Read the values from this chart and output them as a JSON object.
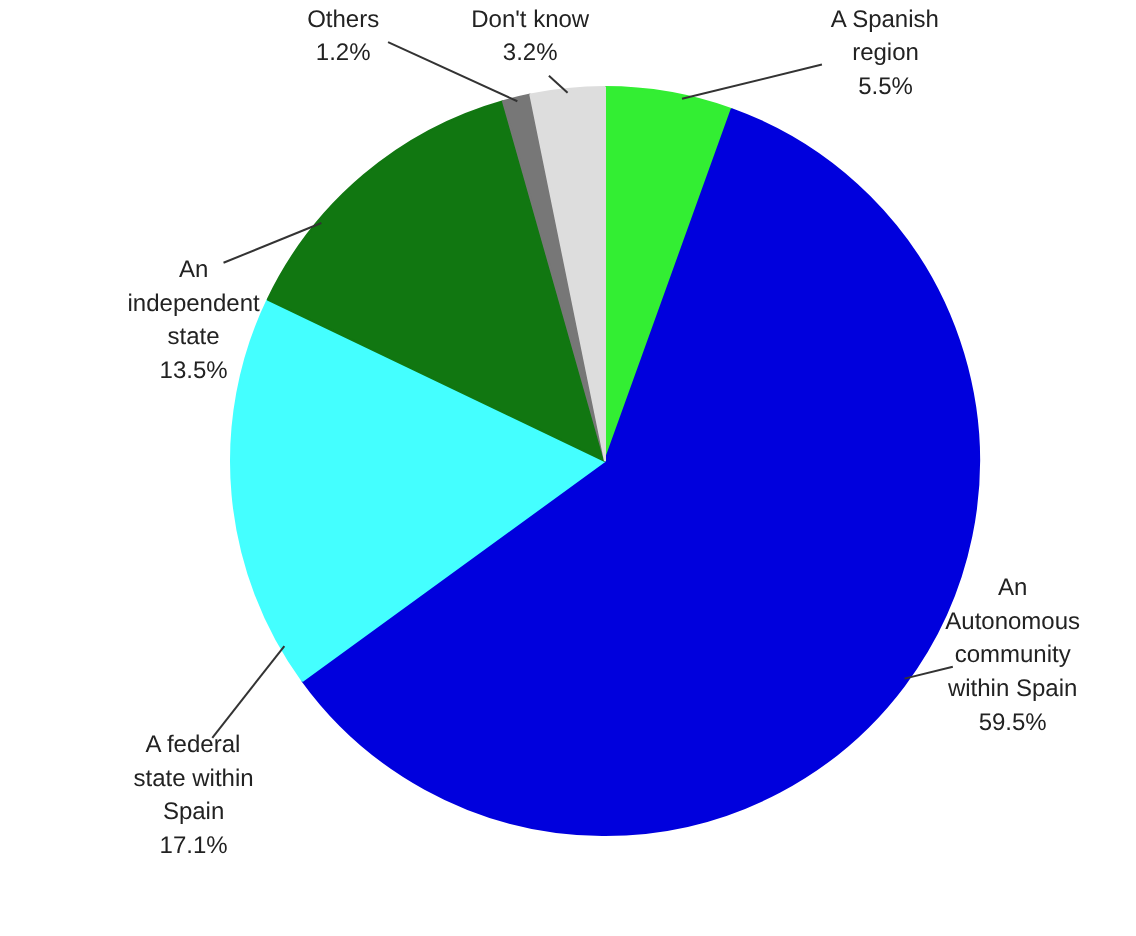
{
  "chart_data": {
    "type": "pie",
    "categories": [
      "A Spanish region",
      "An Autonomous community within Spain",
      "A federal state within Spain",
      "An independent state",
      "Others",
      "Don't know"
    ],
    "values": [
      5.5,
      59.5,
      17.1,
      13.5,
      1.2,
      3.2
    ],
    "value_labels": [
      "5.5%",
      "59.5%",
      "17.1%",
      "13.5%",
      "1.2%",
      "3.2%"
    ],
    "colors": [
      "#33ee33",
      "#0000dd",
      "#44ffff",
      "#117711",
      "#777777",
      "#dddddd"
    ]
  }
}
